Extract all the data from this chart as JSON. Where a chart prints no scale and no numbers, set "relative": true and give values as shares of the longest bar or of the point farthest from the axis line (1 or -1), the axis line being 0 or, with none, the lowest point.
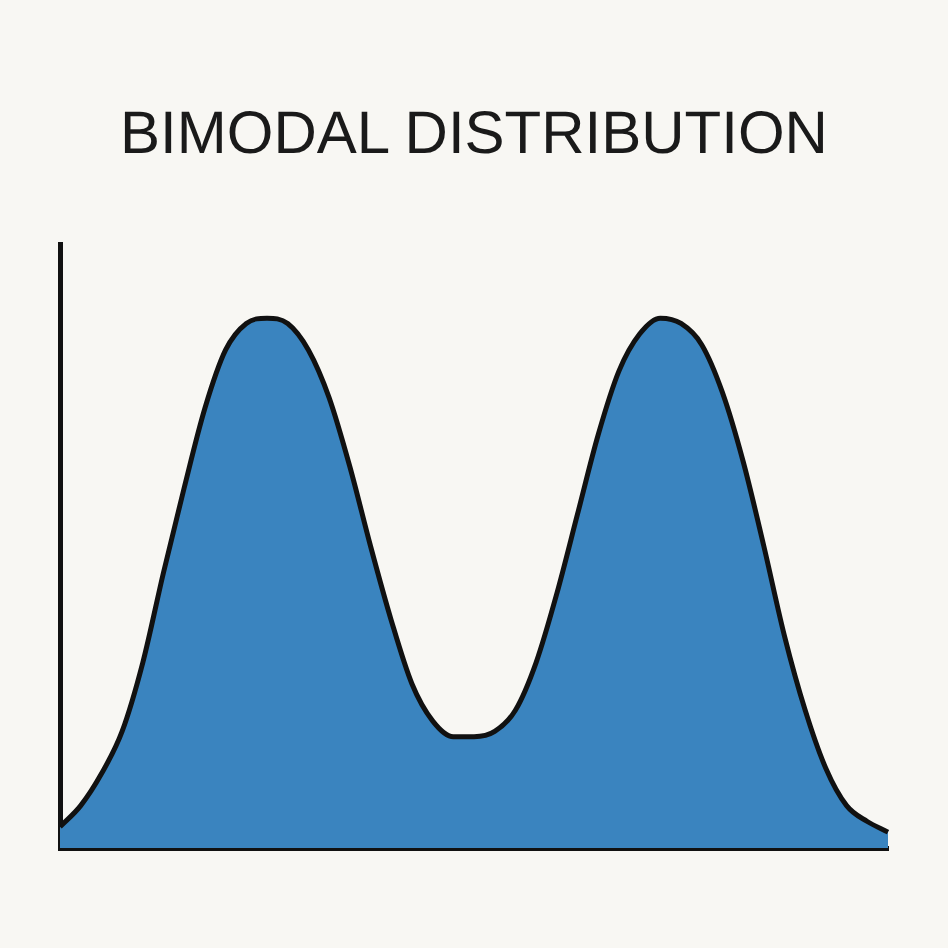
{
  "chart_data": {
    "type": "area",
    "title": "BIMODAL DISTRIBUTION",
    "relative": true,
    "grid": false,
    "legend": false,
    "categories": [
      null,
      null,
      null,
      null,
      null,
      null,
      null,
      null,
      null,
      null,
      null,
      null,
      null,
      null,
      null,
      null,
      null,
      null,
      null,
      null,
      null,
      null,
      null,
      null,
      null,
      null,
      null,
      null,
      null,
      null,
      null,
      null,
      null,
      null,
      null,
      null,
      null,
      null,
      null,
      null,
      null
    ],
    "series": [
      {
        "color": "#3a84bf",
        "values": [
          0.04,
          0.08,
          0.14,
          0.22,
          0.35,
          0.52,
          0.68,
          0.83,
          0.94,
          0.99,
          1.0,
          0.99,
          0.94,
          0.85,
          0.72,
          0.57,
          0.43,
          0.31,
          0.24,
          0.21,
          0.21,
          0.22,
          0.26,
          0.35,
          0.48,
          0.63,
          0.78,
          0.9,
          0.97,
          1.0,
          0.99,
          0.95,
          0.86,
          0.73,
          0.57,
          0.4,
          0.26,
          0.15,
          0.08,
          0.05,
          0.03
        ]
      }
    ]
  }
}
